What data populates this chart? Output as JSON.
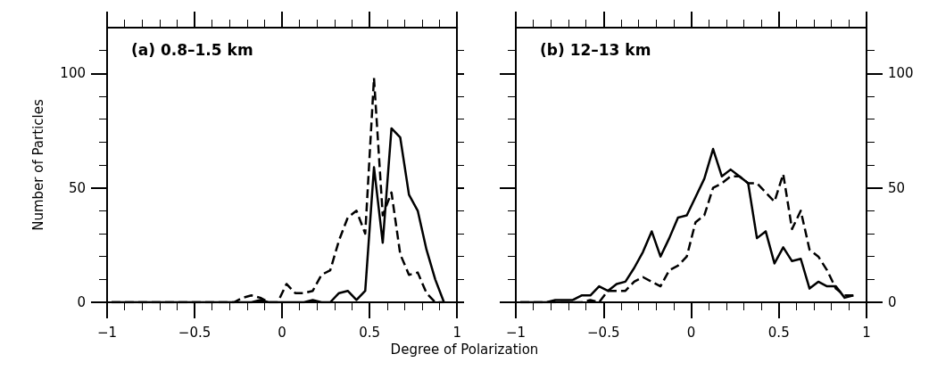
{
  "chart_data": [
    {
      "type": "line",
      "title": "(a) 0.8–1.5 km",
      "xlabel": "Degree of Polarization",
      "ylabel": "Number of Particles",
      "x": [
        -0.975,
        -0.925,
        -0.875,
        -0.825,
        -0.775,
        -0.725,
        -0.675,
        -0.625,
        -0.575,
        -0.525,
        -0.475,
        -0.425,
        -0.375,
        -0.325,
        -0.275,
        -0.225,
        -0.175,
        -0.125,
        -0.075,
        -0.025,
        0.025,
        0.075,
        0.125,
        0.175,
        0.225,
        0.275,
        0.325,
        0.375,
        0.425,
        0.475,
        0.525,
        0.575,
        0.625,
        0.675,
        0.725,
        0.775,
        0.825,
        0.875,
        0.925
      ],
      "series": [
        {
          "color": "#000000",
          "line_style": "solid",
          "values": [
            0,
            0,
            0,
            0,
            0,
            0,
            0,
            0,
            0,
            0,
            0,
            0,
            0,
            0,
            0,
            0,
            0,
            1,
            0,
            0,
            0,
            0,
            0,
            1,
            0,
            0,
            4,
            5,
            1,
            5,
            59,
            26,
            76,
            72,
            47,
            40,
            23,
            10,
            0
          ]
        },
        {
          "color": "#000000",
          "line_style": "dashed",
          "values": [
            0,
            0,
            0,
            0,
            0,
            0,
            0,
            0,
            0,
            0,
            0,
            0,
            0,
            0,
            0,
            2,
            3,
            2,
            0,
            0,
            8,
            4,
            4,
            5,
            12,
            14,
            27,
            37,
            40,
            30,
            98,
            38,
            48,
            21,
            12,
            13,
            4,
            0,
            0
          ]
        }
      ],
      "xlim": [
        -1,
        1
      ],
      "xticks": [
        -1,
        -0.5,
        0,
        0.5,
        1
      ],
      "ylim": [
        0,
        120
      ],
      "yticks": [
        0,
        50,
        100
      ],
      "grid": false,
      "marker": "none"
    },
    {
      "type": "line",
      "title": "(b) 12–13 km",
      "x": [
        -0.975,
        -0.925,
        -0.875,
        -0.825,
        -0.775,
        -0.725,
        -0.675,
        -0.625,
        -0.575,
        -0.525,
        -0.475,
        -0.425,
        -0.375,
        -0.325,
        -0.275,
        -0.225,
        -0.175,
        -0.125,
        -0.075,
        -0.025,
        0.025,
        0.075,
        0.125,
        0.175,
        0.225,
        0.275,
        0.325,
        0.375,
        0.425,
        0.475,
        0.525,
        0.575,
        0.625,
        0.675,
        0.725,
        0.775,
        0.825,
        0.875,
        0.925
      ],
      "series": [
        {
          "color": "#000000",
          "line_style": "solid",
          "values": [
            0,
            0,
            0,
            0,
            1,
            1,
            1,
            3,
            3,
            7,
            5,
            8,
            9,
            15,
            22,
            31,
            20,
            28,
            37,
            38,
            46,
            54,
            67,
            55,
            58,
            55,
            52,
            28,
            31,
            17,
            24,
            18,
            19,
            6,
            9,
            7,
            7,
            2,
            3
          ]
        },
        {
          "color": "#000000",
          "line_style": "dashed",
          "values": [
            0,
            0,
            0,
            0,
            0,
            0,
            0,
            0,
            1,
            0,
            5,
            5,
            5,
            9,
            11,
            9,
            7,
            14,
            16,
            20,
            35,
            38,
            50,
            52,
            55,
            55,
            52,
            52,
            48,
            44,
            56,
            32,
            40,
            23,
            20,
            14,
            6,
            3,
            3
          ]
        }
      ],
      "xlim": [
        -1,
        1
      ],
      "xticks": [
        -1,
        -0.5,
        0,
        0.5,
        1
      ],
      "ylim": [
        0,
        120
      ],
      "yticks": [
        0,
        50,
        100
      ],
      "grid": false,
      "marker": "none"
    }
  ]
}
